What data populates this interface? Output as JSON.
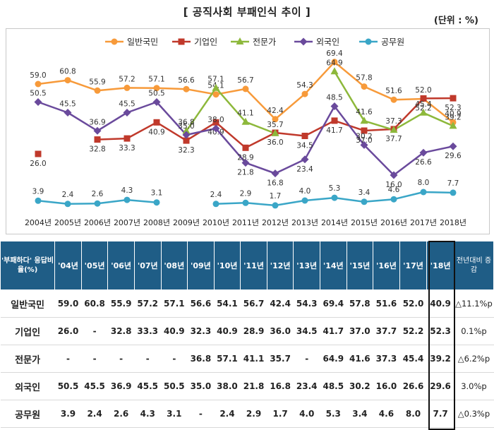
{
  "title": "[ 공직사회 부패인식 추이 ]",
  "unit": "(단위 : %)",
  "chart_data": {
    "type": "line",
    "categories": [
      "2004년",
      "2005년",
      "2006년",
      "2007년",
      "2008년",
      "2009년",
      "2010년",
      "2011년",
      "2012년",
      "2013년",
      "2014년",
      "2015년",
      "2016년",
      "2017년",
      "2018년"
    ],
    "ylim": [
      0,
      75
    ],
    "grid": false,
    "legend_position": "top",
    "series": [
      {
        "name": "일반국민",
        "color": "#f79a3a",
        "marker": "circle",
        "values": [
          59.0,
          60.8,
          55.9,
          57.2,
          57.1,
          56.6,
          54.1,
          56.7,
          42.4,
          54.3,
          69.4,
          57.8,
          51.6,
          52.0,
          40.9
        ]
      },
      {
        "name": "기업인",
        "color": "#c0392b",
        "marker": "square",
        "values": [
          26.0,
          null,
          32.8,
          33.3,
          40.9,
          32.3,
          40.9,
          28.9,
          36.0,
          34.5,
          41.7,
          37.0,
          37.7,
          52.2,
          52.3
        ]
      },
      {
        "name": "전문가",
        "color": "#8db83b",
        "marker": "triangle",
        "values": [
          null,
          null,
          null,
          null,
          null,
          36.8,
          57.1,
          41.1,
          35.7,
          null,
          64.9,
          41.6,
          37.3,
          45.4,
          39.2
        ]
      },
      {
        "name": "외국인",
        "color": "#6a4a9c",
        "marker": "diamond",
        "values": [
          50.5,
          45.5,
          36.9,
          45.5,
          50.5,
          35.0,
          38.0,
          21.8,
          16.8,
          23.4,
          48.5,
          30.2,
          16.0,
          26.6,
          29.6
        ]
      },
      {
        "name": "공무원",
        "color": "#3aa6c7",
        "marker": "circle",
        "values": [
          3.9,
          2.4,
          2.6,
          4.3,
          3.1,
          null,
          2.4,
          2.9,
          1.7,
          4.0,
          5.3,
          3.4,
          4.6,
          8.0,
          7.7
        ]
      }
    ]
  },
  "table": {
    "corner": "'부패하다' 응답비율(%)",
    "headers": [
      "'04년",
      "'05년",
      "'06년",
      "'07년",
      "'08년",
      "'09년",
      "'10년",
      "'11년",
      "'12년",
      "'13년",
      "'14년",
      "'15년",
      "'16년",
      "'17년",
      "'18년"
    ],
    "change_header": "전년대비 증감",
    "rows": [
      {
        "name": "일반국민",
        "cells": [
          "59.0",
          "60.8",
          "55.9",
          "57.2",
          "57.1",
          "56.6",
          "54.1",
          "56.7",
          "42.4",
          "54.3",
          "69.4",
          "57.8",
          "51.6",
          "52.0",
          "40.9"
        ],
        "change": "△11.1%p"
      },
      {
        "name": "기업인",
        "cells": [
          "26.0",
          "-",
          "32.8",
          "33.3",
          "40.9",
          "32.3",
          "40.9",
          "28.9",
          "36.0",
          "34.5",
          "41.7",
          "37.0",
          "37.7",
          "52.2",
          "52.3"
        ],
        "change": "0.1%p"
      },
      {
        "name": "전문가",
        "cells": [
          "-",
          "-",
          "-",
          "-",
          "-",
          "36.8",
          "57.1",
          "41.1",
          "35.7",
          "-",
          "64.9",
          "41.6",
          "37.3",
          "45.4",
          "39.2"
        ],
        "change": "△6.2%p"
      },
      {
        "name": "외국인",
        "cells": [
          "50.5",
          "45.5",
          "36.9",
          "45.5",
          "50.5",
          "35.0",
          "38.0",
          "21.8",
          "16.8",
          "23.4",
          "48.5",
          "30.2",
          "16.0",
          "26.6",
          "29.6"
        ],
        "change": "3.0%p"
      },
      {
        "name": "공무원",
        "cells": [
          "3.9",
          "2.4",
          "2.6",
          "4.3",
          "3.1",
          "-",
          "2.4",
          "2.9",
          "1.7",
          "4.0",
          "5.3",
          "3.4",
          "4.6",
          "8.0",
          "7.7"
        ],
        "change": "△0.3%p"
      }
    ]
  }
}
